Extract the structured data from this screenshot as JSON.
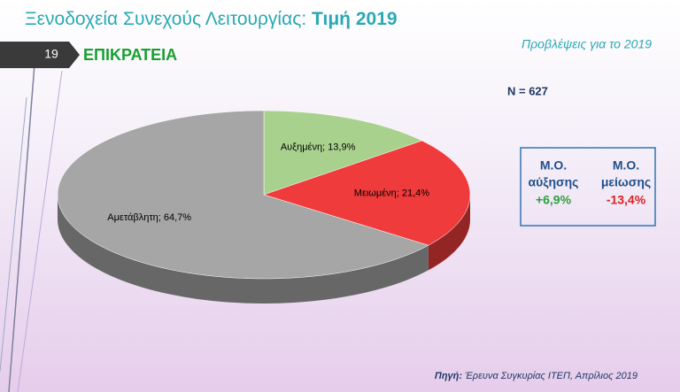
{
  "header": {
    "title": "Ξενοδοχεία Συνεχούς Λειτουργίας:",
    "title_bold": "Τιμή 2019",
    "slide_number": "19",
    "section": "ΕΠΙΚΡΑΤΕΙΑ",
    "subtitle": "Προβλέψεις για το 2019"
  },
  "chart_data": {
    "type": "pie",
    "annotation": "N = 627",
    "values": [
      13.9,
      21.4,
      64.7
    ],
    "value_labels": [
      "Αυξημένη; 13,9%",
      "Μειωμένη; 21,4%",
      "Αμετάβλητη; 64,7%"
    ],
    "colors": [
      "#a9d18e",
      "#ef3b3b",
      "#a6a6a6"
    ]
  },
  "summary": {
    "columns": [
      {
        "line1": "Μ.Ο.",
        "line2": "αύξησης",
        "value": "+6,9%"
      },
      {
        "line1": "Μ.Ο.",
        "line2": "μείωσης",
        "value": "-13,4%"
      }
    ]
  },
  "source": {
    "label": "Πηγή:",
    "text": "Έρευνα Συγκυρίας ΙΤΕΠ, Απρίλιος 2019"
  }
}
